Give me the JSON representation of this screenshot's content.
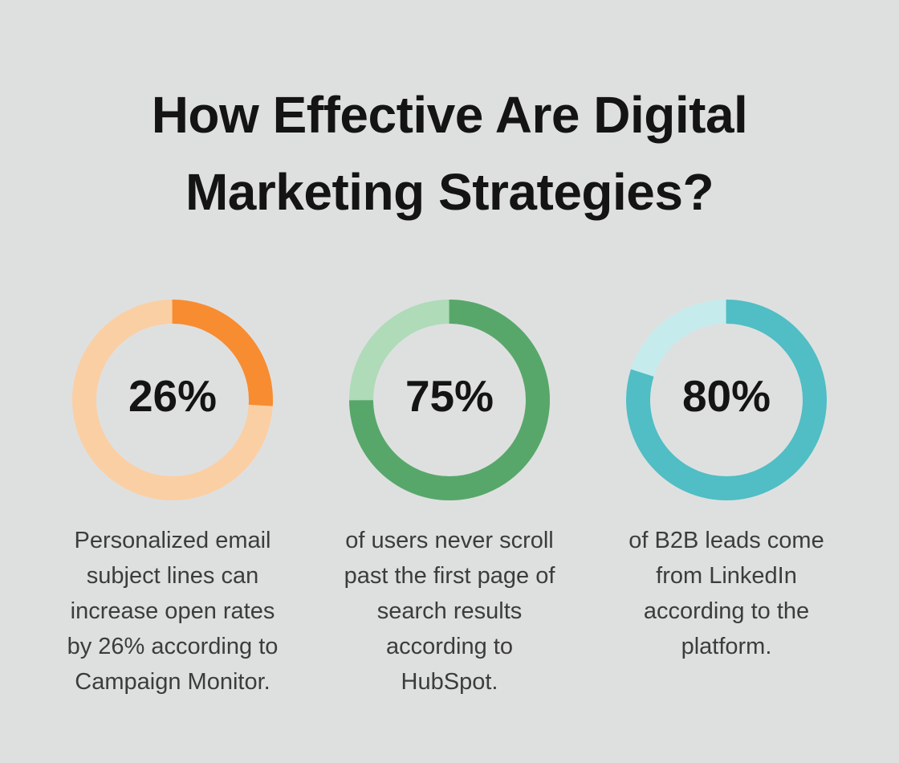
{
  "background_color": "#dee0e0",
  "title": {
    "text": "How Effective Are Digital Marketing Strategies?",
    "lines": [
      "How Effective Are Digital",
      "Marketing Strategies?"
    ],
    "color": "#141414"
  },
  "chart_data": [
    {
      "type": "donut",
      "percent": 26,
      "label": "26%",
      "values": [
        26,
        74
      ],
      "start_angle": "top",
      "direction": "clockwise",
      "fill_color": "#f78c31",
      "track_color": "#fbcfa4",
      "caption_lines": [
        "Personalized email",
        "subject lines can",
        "increase open rates",
        "by 26% according to",
        "Campaign Monitor."
      ]
    },
    {
      "type": "donut",
      "percent": 75,
      "label": "75%",
      "values": [
        75,
        25
      ],
      "start_angle": "top",
      "direction": "clockwise",
      "fill_color": "#58a76a",
      "track_color": "#afdbb8",
      "caption_lines": [
        "of users never scroll",
        "past the first page of",
        "search results",
        "according to",
        "HubSpot."
      ]
    },
    {
      "type": "donut",
      "percent": 80,
      "label": "80%",
      "values": [
        80,
        20
      ],
      "start_angle": "top",
      "direction": "clockwise",
      "fill_color": "#50bec4",
      "track_color": "#c6ebec",
      "caption_lines": [
        "of B2B leads come",
        "from LinkedIn",
        "according to the",
        "platform."
      ]
    }
  ]
}
